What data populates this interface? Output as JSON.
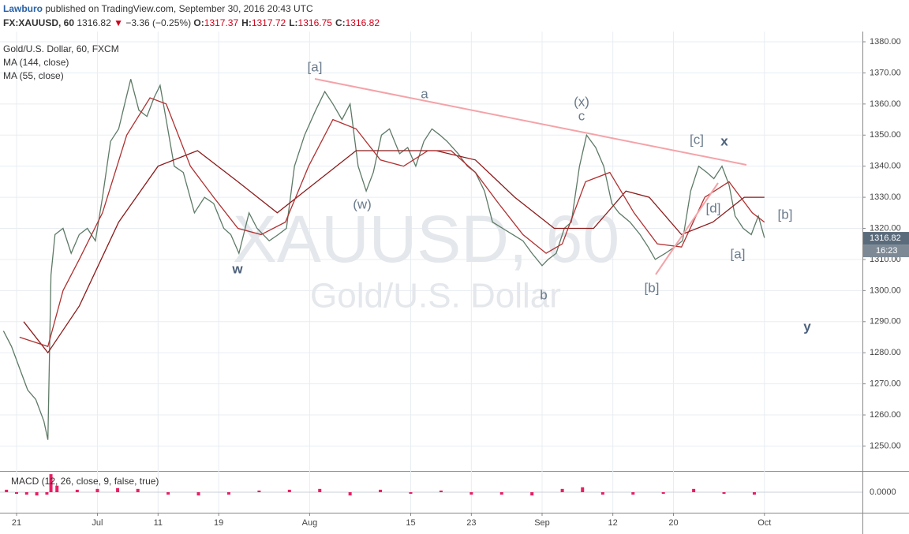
{
  "header": {
    "author": "Lawburo",
    "published": "published on TradingView.com, September 30, 2016 20:43 UTC",
    "symbol": "FX:XAUUSD, 60",
    "last": "1316.82",
    "arrow": "▼",
    "change": "−3.36 (−0.25%)",
    "ohlc": [
      {
        "label": "O:",
        "value": "1317.37"
      },
      {
        "label": "H:",
        "value": "1317.72"
      },
      {
        "label": "L:",
        "value": "1316.75"
      },
      {
        "label": "C:",
        "value": "1316.82"
      }
    ]
  },
  "watermark": {
    "symbol": "XAUUSD, 60",
    "name": "Gold/U.S. Dollar"
  },
  "annotations": [
    "[a]",
    "a",
    "(x)",
    "c",
    "[c]",
    "x",
    "(w)",
    "[d]",
    "[b]",
    "[a]",
    "w",
    "b",
    "[b]",
    "y"
  ],
  "chart_data": {
    "type": "line",
    "xlim": [
      -1.64,
      83.7
    ],
    "ylim": [
      1242,
      1383.3
    ],
    "xticks": [
      {
        "value": 0,
        "label": "21"
      },
      {
        "value": 8,
        "label": "Jul"
      },
      {
        "value": 14,
        "label": "11"
      },
      {
        "value": 20,
        "label": "19"
      },
      {
        "value": 29,
        "label": "Aug"
      },
      {
        "value": 39,
        "label": "15"
      },
      {
        "value": 45,
        "label": "23"
      },
      {
        "value": 52,
        "label": "Sep"
      },
      {
        "value": 59,
        "label": "12"
      },
      {
        "value": 65,
        "label": "20"
      },
      {
        "value": 74,
        "label": "Oct"
      }
    ],
    "yticks": [
      {
        "value": 1250,
        "label": "1250.00"
      },
      {
        "value": 1260,
        "label": "1260.00"
      },
      {
        "value": 1270,
        "label": "1270.00"
      },
      {
        "value": 1280,
        "label": "1280.00"
      },
      {
        "value": 1290,
        "label": "1290.00"
      },
      {
        "value": 1300,
        "label": "1300.00"
      },
      {
        "value": 1310,
        "label": "1310.00"
      },
      {
        "value": 1320,
        "label": "1320.00"
      },
      {
        "value": 1330,
        "label": "1330.00"
      },
      {
        "value": 1340,
        "label": "1340.00"
      },
      {
        "value": 1350,
        "label": "1350.00"
      },
      {
        "value": 1360,
        "label": "1360.00"
      },
      {
        "value": 1370,
        "label": "1370.00"
      },
      {
        "value": 1380,
        "label": "1380.00"
      }
    ],
    "grid": true,
    "price_tag": {
      "value": 1316.82,
      "label": "1316.82"
    },
    "countdown": "16:23",
    "series": [
      {
        "name": "Gold/U.S. Dollar, 60, FXCM",
        "color": "#5d7a66",
        "x": [
          -1.3,
          -0.5,
          0.3,
          1.1,
          1.9,
          2.7,
          3.1,
          3.4,
          3.8,
          4.6,
          5.4,
          6.2,
          7.0,
          7.8,
          8.5,
          9.3,
          10.1,
          10.7,
          11.3,
          12.1,
          12.9,
          13.6,
          14.2,
          14.8,
          15.6,
          16.5,
          17.6,
          18.6,
          19.5,
          20.5,
          21.2,
          22.0,
          23.0,
          23.8,
          25.0,
          25.9,
          26.7,
          27.5,
          28.5,
          29.6,
          30.5,
          31.3,
          32.2,
          33.0,
          33.8,
          34.6,
          35.3,
          36.1,
          36.9,
          37.9,
          38.7,
          39.5,
          40.3,
          41.1,
          41.9,
          42.6,
          43.7,
          44.6,
          45.4,
          46.3,
          47.1,
          48.1,
          49.1,
          50.1,
          51.0,
          52.0,
          52.6,
          53.4,
          54.2,
          54.9,
          55.7,
          56.4,
          57.3,
          58.1,
          58.9,
          59.6,
          60.7,
          61.7,
          62.5,
          63.2,
          64.2,
          65.1,
          65.9,
          66.7,
          67.5,
          68.3,
          69.0,
          69.8,
          70.5,
          71.1,
          71.9,
          72.7,
          73.4,
          74.0
        ],
        "values": [
          1287,
          1282,
          1275,
          1268,
          1265,
          1258,
          1252,
          1305,
          1318,
          1320,
          1312,
          1318,
          1320,
          1316,
          1330,
          1348,
          1352,
          1360,
          1368,
          1358,
          1356,
          1362,
          1366,
          1355,
          1340,
          1338,
          1325,
          1330,
          1328,
          1320,
          1318,
          1312,
          1325,
          1320,
          1316,
          1318,
          1320,
          1340,
          1350,
          1358,
          1364,
          1360,
          1355,
          1360,
          1340,
          1332,
          1338,
          1350,
          1352,
          1344,
          1346,
          1340,
          1348,
          1352,
          1350,
          1348,
          1344,
          1340,
          1338,
          1332,
          1322,
          1320,
          1318,
          1316,
          1312,
          1308,
          1310,
          1312,
          1320,
          1322,
          1340,
          1350,
          1346,
          1340,
          1328,
          1325,
          1322,
          1318,
          1314,
          1310,
          1312,
          1314,
          1316,
          1332,
          1340,
          1338,
          1336,
          1340,
          1334,
          1324,
          1320,
          1318,
          1324,
          1317
        ]
      },
      {
        "name": "MA (144, close)",
        "color": "#8b1a1a",
        "x": [
          0.7,
          3.1,
          6.2,
          10.1,
          14.0,
          17.9,
          21.9,
          25.8,
          29.7,
          33.6,
          37.5,
          41.5,
          45.4,
          49.3,
          53.2,
          57.1,
          60.3,
          62.6,
          65.8,
          68.9,
          72.0,
          74.0
        ],
        "values": [
          1290,
          1280,
          1295,
          1322,
          1340,
          1345,
          1335,
          1325,
          1335,
          1345,
          1345,
          1345,
          1342,
          1330,
          1320,
          1320,
          1332,
          1330,
          1318,
          1322,
          1330,
          1330
        ]
      },
      {
        "name": "MA (55, close)",
        "color": "#b03030",
        "x": [
          0.3,
          3.1,
          4.6,
          6.2,
          8.5,
          10.9,
          13.2,
          14.8,
          17.2,
          19.5,
          21.9,
          24.2,
          26.6,
          28.9,
          31.3,
          33.6,
          36.0,
          38.3,
          40.7,
          43.0,
          45.4,
          47.7,
          50.1,
          52.4,
          54.0,
          56.3,
          58.7,
          61.1,
          63.4,
          65.8,
          68.1,
          70.5,
          72.8,
          74.0
        ],
        "values": [
          1285,
          1282,
          1300,
          1310,
          1325,
          1350,
          1362,
          1360,
          1340,
          1330,
          1320,
          1318,
          1322,
          1340,
          1355,
          1352,
          1342,
          1340,
          1345,
          1345,
          1338,
          1328,
          1318,
          1312,
          1315,
          1335,
          1338,
          1325,
          1315,
          1314,
          1330,
          1335,
          1325,
          1322
        ]
      }
    ],
    "macd": {
      "label": "MACD (12, 26, close, 9, false, true)",
      "color": "#e91e63",
      "ylim": [
        -2.5,
        2.5
      ],
      "yticks": [
        {
          "value": 0,
          "label": "0.0000"
        }
      ],
      "x": [
        -1,
        0,
        1,
        2,
        3,
        3.4,
        4,
        6,
        8,
        10,
        12,
        15,
        18,
        21,
        24,
        27,
        30,
        33,
        36,
        39,
        42,
        45,
        48,
        51,
        54,
        56,
        58,
        61,
        64,
        67,
        70,
        73
      ],
      "values": [
        0.3,
        -0.2,
        -0.3,
        -0.4,
        -0.3,
        2.2,
        0.8,
        0.3,
        0.4,
        0.5,
        0.4,
        -0.3,
        -0.4,
        -0.3,
        0.2,
        0.3,
        0.4,
        -0.4,
        0.3,
        -0.2,
        0.2,
        -0.3,
        -0.3,
        -0.4,
        0.4,
        0.6,
        -0.3,
        -0.3,
        -0.2,
        0.4,
        -0.2,
        -0.3
      ]
    }
  }
}
